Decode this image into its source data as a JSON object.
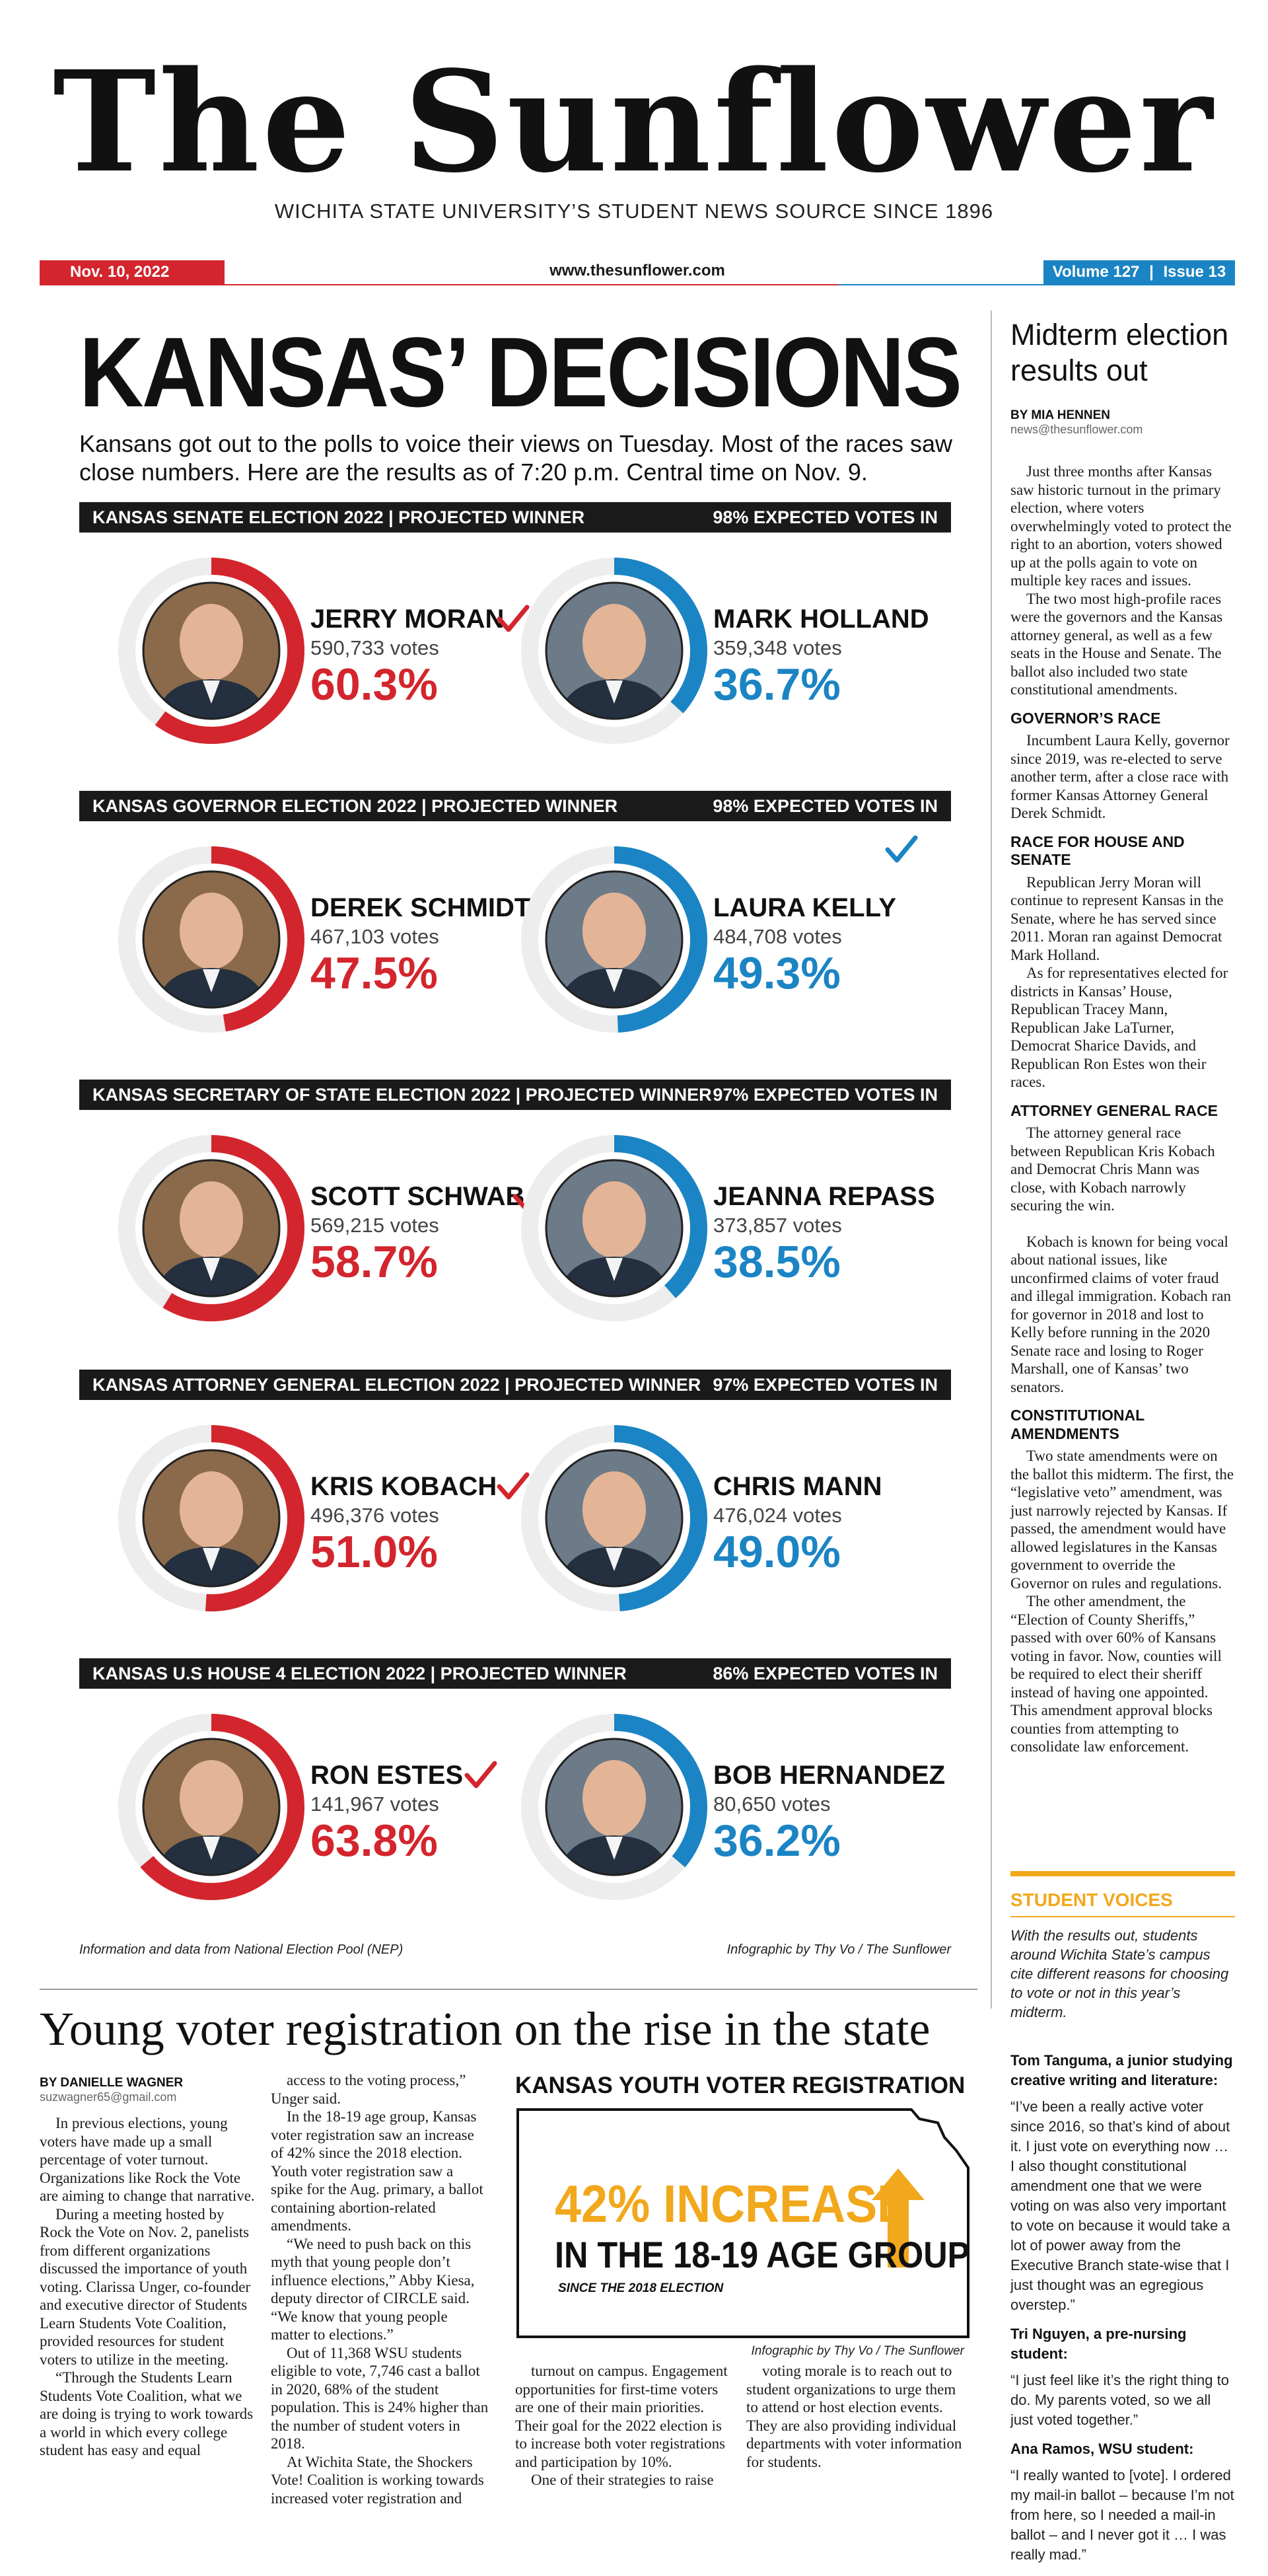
{
  "masthead": {
    "title": "The Sunflower",
    "subtitle": "WICHITA STATE UNIVERSITY’S STUDENT NEWS SOURCE SINCE 1896",
    "date": "Nov. 10, 2022",
    "url": "www.thesunflower.com",
    "volume": "Volume 127",
    "issue": "Issue 13"
  },
  "feature": {
    "headline": "KANSAS’ DECISIONS",
    "deck": "Kansans got out to the polls to voice their views on Tuesday. Most of the races saw close numbers. Here are the results as of 7:20 p.m. Central time on Nov. 9.",
    "credit_left": "Information and data from National Election Pool (NEP)",
    "credit_right": "Infographic by Thy Vo / The Sunflower"
  },
  "colors": {
    "red": "#d3252d",
    "blue": "#1b84c4",
    "gold": "#f2a81c",
    "bar": "#1a1a1a"
  },
  "chart_data": {
    "type": "table",
    "races": [
      {
        "title": "KANSAS SENATE ELECTION 2022 | PROJECTED WINNER",
        "expected": "98% EXPECTED VOTES IN",
        "candidates": [
          {
            "name": "JERRY MORAN",
            "votes": "590,733 votes",
            "pct_label": "60.3%",
            "pct": 60.3,
            "party": "red",
            "winner": true
          },
          {
            "name": "MARK HOLLAND",
            "votes": "359,348 votes",
            "pct_label": "36.7%",
            "pct": 36.7,
            "party": "blue",
            "winner": false
          }
        ]
      },
      {
        "title": "KANSAS GOVERNOR ELECTION 2022 | PROJECTED WINNER",
        "expected": "98% EXPECTED VOTES IN",
        "candidates": [
          {
            "name": "DEREK SCHMIDT",
            "votes": "467,103 votes",
            "pct_label": "47.5%",
            "pct": 47.5,
            "party": "red",
            "winner": false
          },
          {
            "name": "LAURA KELLY",
            "votes": "484,708 votes",
            "pct_label": "49.3%",
            "pct": 49.3,
            "party": "blue",
            "winner": true
          }
        ]
      },
      {
        "title": "KANSAS SECRETARY OF STATE ELECTION 2022 | PROJECTED WINNER",
        "expected": "97% EXPECTED VOTES IN",
        "candidates": [
          {
            "name": "SCOTT SCHWAB",
            "votes": "569,215 votes",
            "pct_label": "58.7%",
            "pct": 58.7,
            "party": "red",
            "winner": true
          },
          {
            "name": "JEANNA REPASS",
            "votes": "373,857 votes",
            "pct_label": "38.5%",
            "pct": 38.5,
            "party": "blue",
            "winner": false
          }
        ]
      },
      {
        "title": "KANSAS ATTORNEY GENERAL ELECTION 2022 | PROJECTED WINNER",
        "expected": "97% EXPECTED VOTES IN",
        "candidates": [
          {
            "name": "KRIS KOBACH",
            "votes": "496,376 votes",
            "pct_label": "51.0%",
            "pct": 51.0,
            "party": "red",
            "winner": true
          },
          {
            "name": "CHRIS MANN",
            "votes": "476,024 votes",
            "pct_label": "49.0%",
            "pct": 49.0,
            "party": "blue",
            "winner": false
          }
        ]
      },
      {
        "title": "KANSAS U.S HOUSE 4 ELECTION 2022 | PROJECTED WINNER",
        "expected": "86% EXPECTED VOTES IN",
        "candidates": [
          {
            "name": "RON ESTES",
            "votes": "141,967 votes",
            "pct_label": "63.8%",
            "pct": 63.8,
            "party": "red",
            "winner": true
          },
          {
            "name": "BOB HERNANDEZ",
            "votes": "80,650 votes",
            "pct_label": "36.2%",
            "pct": 36.2,
            "party": "blue",
            "winner": false
          }
        ]
      }
    ]
  },
  "sidebar": {
    "headline": "Midterm election results out",
    "byline": "BY MIA HENNEN",
    "email": "news@thesunflower.com",
    "blocks": [
      {
        "type": "p",
        "text": "Just three months after Kansas saw historic turnout in the primary election, where voters overwhelmingly voted to protect the right to an abortion, voters showed up at the polls again to vote on multiple key races and issues."
      },
      {
        "type": "p",
        "text": "The two most high-profile races were the governors and the Kansas attorney general, as well as a few seats in the House and Senate. The ballot also included two state constitutional amendments."
      },
      {
        "type": "h",
        "text": "GOVERNOR’S RACE"
      },
      {
        "type": "p",
        "text": "Incumbent Laura Kelly, governor since 2019, was re-elected to serve another term, after a close race with former Kansas Attorney General Derek Schmidt."
      },
      {
        "type": "h",
        "text": "RACE FOR HOUSE AND SENATE"
      },
      {
        "type": "p",
        "text": "Republican Jerry Moran will continue to represent Kansas in the Senate, where he has served since 2011. Moran ran against Democrat Mark Holland."
      },
      {
        "type": "p",
        "text": "As for representatives elected for districts in Kansas’ House, Republican Tracey Mann, Republican Jake LaTurner, Democrat Sharice Davids, and Republican Ron Estes won their races."
      },
      {
        "type": "h",
        "text": "ATTORNEY GENERAL RACE"
      },
      {
        "type": "p",
        "text": "The attorney general race between Republican Kris Kobach and Democrat Chris Mann was close, with Kobach narrowly securing the win."
      },
      {
        "type": "gap",
        "text": ""
      },
      {
        "type": "p",
        "text": "Kobach is known for being vocal about national issues, like unconfirmed claims of voter fraud and illegal immigration. Kobach ran for governor in 2018 and lost to Kelly before running in the 2020 Senate race and losing to Roger Marshall, one of Kansas’ two senators."
      },
      {
        "type": "h",
        "text": "CONSTITUTIONAL AMENDMENTS"
      },
      {
        "type": "p",
        "text": "Two state amendments were on the ballot this midterm. The first, the “legislative veto” amendment, was just narrowly rejected by Kansas. If passed, the amendment would have allowed legislatures in the Kansas government to override the Governor on rules and regulations."
      },
      {
        "type": "p",
        "text": "The other amendment, the “Election of County Sheriffs,” passed with over 60% of Kansans voting in favor. Now, counties will be required to elect their sheriff instead of having one appointed. This amendment approval blocks counties from attempting to consolidate law enforcement."
      }
    ]
  },
  "voices": {
    "label": "STUDENT VOICES",
    "intro": "With the results out, students around Wichita State’s campus cite different reasons for choosing to vote or not in this year’s midterm.",
    "quotes": [
      {
        "who": "Tom Tanguma, a junior studying creative writing and literature:",
        "quote": "“I’ve been a really active voter since 2016, so that’s kind of about it. I just vote on everything now … I also thought constitutional amendment one that we were voting on was also very important to vote on because it would take a lot of power away from the Executive Branch state-wise that I just thought was an egregious overstep.”"
      },
      {
        "who": "Tri Nguyen, a pre-nursing student:",
        "quote": "“I just feel like it’s the right thing to do. My parents voted, so we all just voted together.”"
      },
      {
        "who": "Ana Ramos, WSU student:",
        "quote": "“I really wanted to [vote]. I ordered my mail-in ballot – because I’m not from here, so I needed a mail-in ballot – and I never got it … I was really mad.”"
      }
    ]
  },
  "bottom": {
    "headline": "Young voter registration on the rise in the state",
    "byline": "BY DANIELLE WAGNER",
    "email": "suzwagner65@gmail.com",
    "col1": [
      "In previous elections, young voters have made up a small percentage of voter turnout. Organizations like Rock the Vote are aiming to change that narrative.",
      "During a meeting hosted by Rock the Vote on Nov. 2, panelists from different organizations discussed the importance of youth voting. Clarissa Unger, co-founder and executive director of Students Learn Students Vote Coalition, provided resources for student voters to utilize in the meeting.",
      "“Through the Students Learn Students Vote Coalition, what we are doing is trying to work towards a world in which every college student has easy and equal"
    ],
    "col2": [
      "access to the voting process,” Unger said.",
      "In the 18-19 age group, Kansas voter registration saw an increase of 42% since the 2018 election. Youth voter registration saw a spike for the Aug. primary, a ballot containing abortion-related amendments.",
      "“We need to push back on this myth that young people don’t influence elections,” Abby Kiesa, deputy director of CIRCLE said. “We know that young people matter to elections.”",
      "Out of 11,368 WSU students eligible to vote, 7,746 cast a ballot in 2020, 68% of the student population. This is 24% higher than the number of student voters in 2018.",
      "At Wichita State, the Shockers Vote! Coalition is working towards increased voter registration and"
    ],
    "col3": [
      "turnout on campus. Engagement opportunities for first-time voters are one of their main priorities. Their goal for the 2022 election is to increase both voter registrations and participation by 10%.",
      "One of their strategies to raise"
    ],
    "col4": [
      "voting morale is to reach out to student organizations to urge them to attend or host election events. They are also providing individual departments with voter information for students."
    ],
    "infographic": {
      "title": "KANSAS YOUTH VOTER REGISTRATION",
      "big": "42% INCREASE",
      "mid": "IN THE 18-19 AGE GROUP",
      "small": "SINCE THE 2018 ELECTION",
      "credit": "Infographic by Thy Vo / The Sunflower",
      "icon": "up-arrow-icon"
    }
  }
}
